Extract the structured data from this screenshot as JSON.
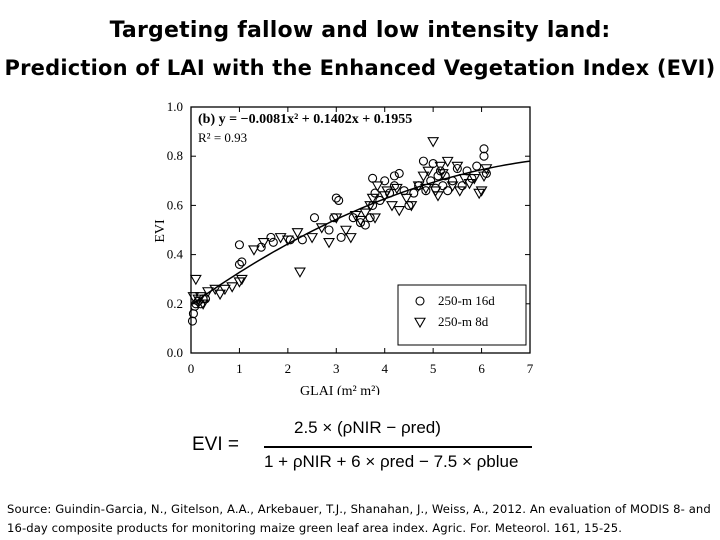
{
  "title": "Targeting fallow and low intensity land:",
  "subtitle": "Prediction of LAI with the Enhanced Vegetation Index (EVI)",
  "chart_data": {
    "type": "scatter",
    "panel_label": "(b) y = −0.0081x² + 0.1402x + 0.1955",
    "r_squared": "R² = 0.93",
    "xlabel": "GLAI (m² m²)",
    "ylabel": "EVI",
    "xlim": [
      0,
      7
    ],
    "ylim": [
      0,
      1.0
    ],
    "x_ticks": [
      0,
      1,
      2,
      3,
      4,
      5,
      6,
      7
    ],
    "y_ticks": [
      0.0,
      0.2,
      0.4,
      0.6,
      0.8,
      1.0
    ],
    "x_tick_labels": [
      "0",
      "1",
      "2",
      "3",
      "4",
      "5",
      "6",
      "7"
    ],
    "y_tick_labels": [
      "0.0",
      "0.2",
      "0.4",
      "0.6",
      "0.8",
      "1.0"
    ],
    "legend_position": "bottom-right",
    "fit": {
      "a": -0.0081,
      "b": 0.1402,
      "c": 0.1955,
      "x_range": [
        0,
        7
      ]
    },
    "series": [
      {
        "name": "250-m 16d",
        "marker": "circle",
        "points": [
          [
            0.03,
            0.13
          ],
          [
            0.05,
            0.16
          ],
          [
            0.08,
            0.19
          ],
          [
            0.1,
            0.2
          ],
          [
            0.15,
            0.21
          ],
          [
            0.2,
            0.2
          ],
          [
            0.25,
            0.22
          ],
          [
            0.3,
            0.22
          ],
          [
            1.0,
            0.44
          ],
          [
            1.0,
            0.36
          ],
          [
            1.05,
            0.37
          ],
          [
            1.45,
            0.43
          ],
          [
            1.65,
            0.47
          ],
          [
            1.7,
            0.45
          ],
          [
            2.05,
            0.46
          ],
          [
            2.3,
            0.46
          ],
          [
            2.55,
            0.55
          ],
          [
            2.85,
            0.5
          ],
          [
            2.95,
            0.55
          ],
          [
            3.0,
            0.63
          ],
          [
            3.05,
            0.62
          ],
          [
            3.1,
            0.47
          ],
          [
            3.35,
            0.55
          ],
          [
            3.5,
            0.53
          ],
          [
            3.6,
            0.52
          ],
          [
            3.7,
            0.55
          ],
          [
            3.75,
            0.6
          ],
          [
            3.8,
            0.65
          ],
          [
            3.75,
            0.71
          ],
          [
            3.9,
            0.62
          ],
          [
            4.0,
            0.7
          ],
          [
            4.1,
            0.65
          ],
          [
            4.2,
            0.68
          ],
          [
            4.2,
            0.72
          ],
          [
            4.3,
            0.73
          ],
          [
            4.4,
            0.66
          ],
          [
            4.5,
            0.6
          ],
          [
            4.6,
            0.65
          ],
          [
            4.7,
            0.68
          ],
          [
            4.8,
            0.78
          ],
          [
            4.85,
            0.66
          ],
          [
            4.95,
            0.7
          ],
          [
            5.0,
            0.77
          ],
          [
            5.05,
            0.67
          ],
          [
            5.1,
            0.72
          ],
          [
            5.15,
            0.74
          ],
          [
            5.2,
            0.68
          ],
          [
            5.25,
            0.72
          ],
          [
            5.3,
            0.66
          ],
          [
            5.4,
            0.7
          ],
          [
            5.5,
            0.75
          ],
          [
            5.6,
            0.68
          ],
          [
            5.7,
            0.74
          ],
          [
            5.8,
            0.71
          ],
          [
            5.9,
            0.76
          ],
          [
            6.05,
            0.8
          ],
          [
            6.05,
            0.83
          ],
          [
            6.1,
            0.73
          ]
        ]
      },
      {
        "name": "250-m 8d",
        "marker": "triangle-down",
        "points": [
          [
            0.05,
            0.23
          ],
          [
            0.1,
            0.3
          ],
          [
            0.15,
            0.22
          ],
          [
            0.2,
            0.23
          ],
          [
            0.25,
            0.2
          ],
          [
            0.35,
            0.25
          ],
          [
            0.5,
            0.26
          ],
          [
            0.6,
            0.24
          ],
          [
            0.7,
            0.26
          ],
          [
            0.85,
            0.27
          ],
          [
            1.0,
            0.29
          ],
          [
            1.05,
            0.3
          ],
          [
            1.3,
            0.42
          ],
          [
            1.5,
            0.45
          ],
          [
            1.85,
            0.47
          ],
          [
            2.0,
            0.46
          ],
          [
            2.2,
            0.49
          ],
          [
            2.25,
            0.33
          ],
          [
            2.5,
            0.47
          ],
          [
            2.7,
            0.51
          ],
          [
            2.85,
            0.45
          ],
          [
            3.0,
            0.55
          ],
          [
            3.2,
            0.5
          ],
          [
            3.3,
            0.47
          ],
          [
            3.4,
            0.56
          ],
          [
            3.5,
            0.54
          ],
          [
            3.6,
            0.57
          ],
          [
            3.7,
            0.6
          ],
          [
            3.75,
            0.63
          ],
          [
            3.8,
            0.55
          ],
          [
            3.85,
            0.68
          ],
          [
            4.0,
            0.64
          ],
          [
            4.05,
            0.66
          ],
          [
            4.15,
            0.6
          ],
          [
            4.25,
            0.67
          ],
          [
            4.3,
            0.58
          ],
          [
            4.45,
            0.63
          ],
          [
            4.55,
            0.6
          ],
          [
            4.7,
            0.68
          ],
          [
            4.8,
            0.72
          ],
          [
            4.9,
            0.74
          ],
          [
            5.0,
            0.86
          ],
          [
            5.05,
            0.66
          ],
          [
            5.15,
            0.76
          ],
          [
            5.2,
            0.73
          ],
          [
            5.3,
            0.78
          ],
          [
            5.4,
            0.68
          ],
          [
            5.5,
            0.76
          ],
          [
            5.55,
            0.66
          ],
          [
            5.65,
            0.71
          ],
          [
            5.75,
            0.69
          ],
          [
            5.85,
            0.71
          ],
          [
            6.0,
            0.66
          ],
          [
            6.05,
            0.72
          ],
          [
            6.1,
            0.75
          ],
          [
            5.95,
            0.65
          ],
          [
            5.1,
            0.64
          ],
          [
            4.85,
            0.67
          ]
        ]
      }
    ]
  },
  "formula": {
    "lhs": "EVI =",
    "numerator": "2.5 × (ρNIR − ρred)",
    "denominator": "1 + ρNIR + 6 × ρred − 7.5 × ρblue"
  },
  "source": "Source: Guindin-Garcia, N., Gitelson, A.A., Arkebauer, T.J., Shanahan, J., Weiss, A., 2012. An evaluation of MODIS 8- and 16-day composite products for monitoring maize green leaf area index. Agric. For. Meteorol. 161, 15-25."
}
